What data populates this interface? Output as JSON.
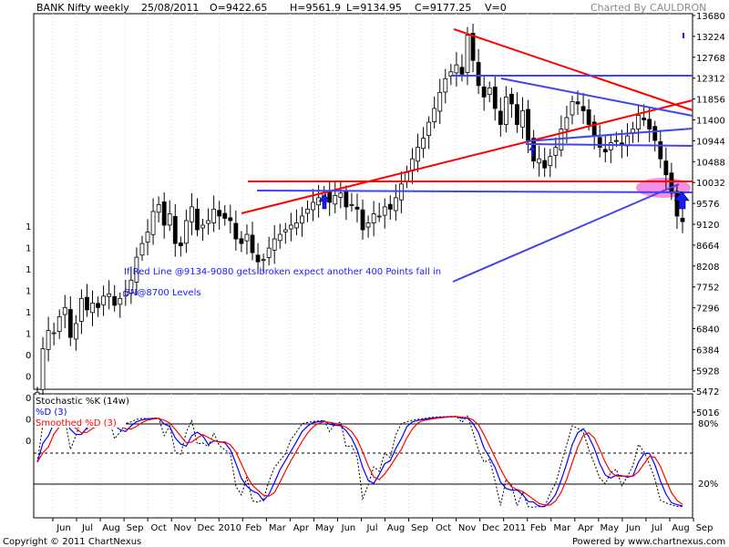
{
  "header": {
    "symbol": "BANK Nifty weekly",
    "date": "25/08/2011",
    "open": "O=9422.65",
    "high": "H=9561.9",
    "low": "L=9134.95",
    "close": "C=9177.25",
    "volume": "V=0",
    "charted_by": "Charted By CAULDRON"
  },
  "footer": {
    "copyright": "Copyright © 2011 ChartNexus",
    "powered_by": "Powered by www.chartnexus.com"
  },
  "annotation": {
    "line1": "If Red Line @9134-9080 gets broken expect another 400 Points fall in",
    "line2": "BN@8700 Levels"
  },
  "colors": {
    "trend_red": "#ff0000",
    "trend_blue": "#4444ee",
    "highlight": "#f06ad8",
    "stoch_k": "#0000ff",
    "stoch_d": "#ff0000"
  },
  "chart_data": [
    {
      "type": "candlestick",
      "title": "BANK Nifty weekly",
      "y_axis_position": "right",
      "y_ticks": [
        5016,
        5472,
        5928,
        6384,
        6840,
        7296,
        7752,
        8208,
        8664,
        9120,
        9576,
        10032,
        10488,
        10944,
        11400,
        11856,
        12312,
        12768,
        13224,
        13680
      ],
      "ylim": [
        4600,
        13680
      ],
      "left_axis_ticks": [
        "1",
        "1",
        "1",
        "1",
        "1",
        "1",
        "0",
        "0",
        "0",
        "0",
        "0"
      ],
      "x_ticks": [
        "Jun",
        "Jul",
        "Aug",
        "Sep",
        "Oct",
        "Nov",
        "Dec",
        "2010",
        "Feb",
        "Mar",
        "Apr",
        "May",
        "Jun",
        "Jul",
        "Aug",
        "Sep",
        "Oct",
        "Nov",
        "Dec",
        "2011",
        "Feb",
        "Mar",
        "Apr",
        "May",
        "Jun",
        "Jul",
        "Aug",
        "Sep"
      ],
      "weeks": 118,
      "close": [
        5450,
        6400,
        6800,
        6750,
        7100,
        7300,
        6650,
        6950,
        7500,
        7250,
        7400,
        7300,
        7550,
        7600,
        7350,
        7500,
        7650,
        7900,
        8400,
        8700,
        8950,
        9400,
        9550,
        9100,
        9350,
        8700,
        8650,
        9200,
        9500,
        9000,
        9100,
        9200,
        9450,
        9300,
        9250,
        9200,
        8800,
        8700,
        8900,
        8500,
        8300,
        8350,
        8600,
        8800,
        8900,
        9000,
        9100,
        9150,
        9300,
        9450,
        9600,
        9700,
        9800,
        9600,
        9750,
        9800,
        9500,
        9550,
        9450,
        9000,
        9150,
        9350,
        9300,
        9500,
        9450,
        9700,
        10000,
        10250,
        10550,
        10800,
        11000,
        11350,
        11650,
        12000,
        12300,
        12450,
        12600,
        12400,
        13250,
        12700,
        12150,
        11900,
        12100,
        11650,
        11300,
        11900,
        11750,
        11300,
        11600,
        10950,
        10500,
        10550,
        10350,
        10600,
        10800,
        11200,
        11450,
        11800,
        11750,
        11600,
        11300,
        11050,
        10800,
        10700,
        10900,
        10950,
        10850,
        11050,
        11200,
        11500,
        11400,
        11200,
        10950,
        10550,
        10200,
        9800,
        9300,
        9177
      ],
      "annotations_text": "If Red Line @9134-9080 gets broken expect another 400 Points fall in BN@8700 Levels"
    },
    {
      "type": "line",
      "title": "Stochastic %K (14w)",
      "series": [
        {
          "name": "%D (3)",
          "color": "#0000ff"
        },
        {
          "name": "Smoothed %D (3)",
          "color": "#ff0000"
        }
      ],
      "y_ticks": [
        20,
        80
      ],
      "ylim": [
        0,
        100
      ]
    }
  ]
}
